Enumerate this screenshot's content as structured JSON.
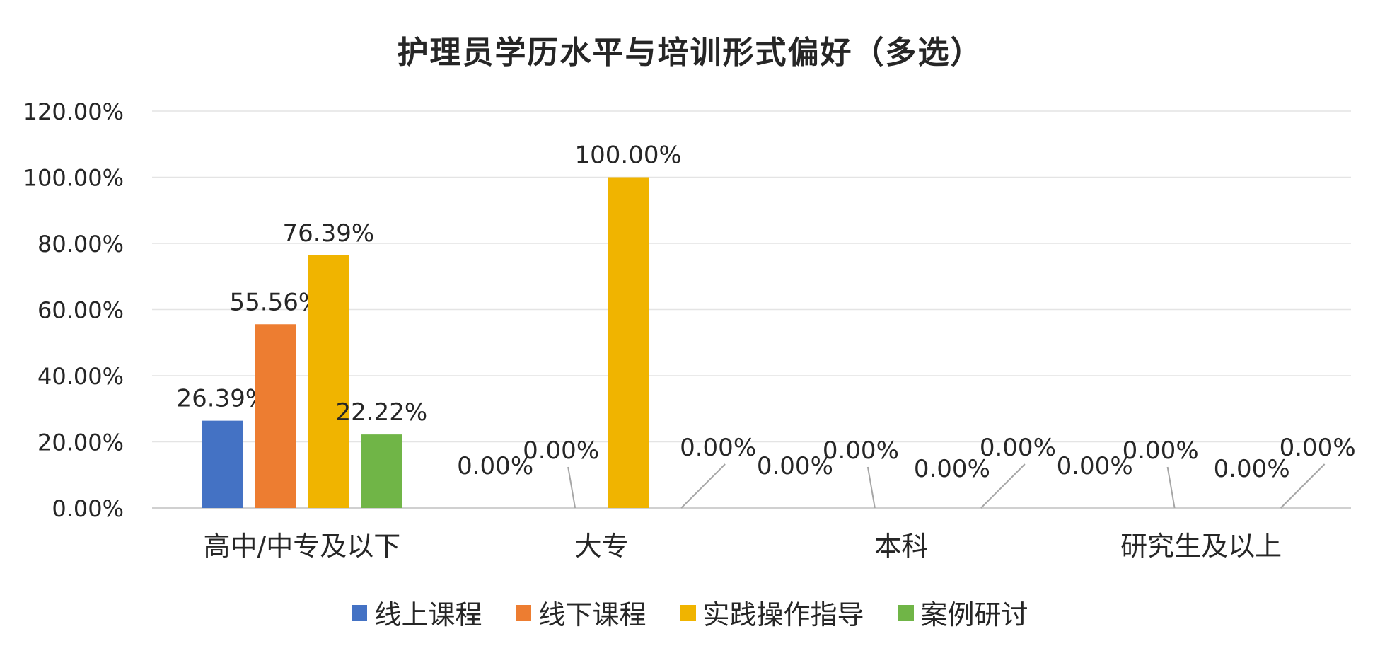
{
  "chart_data": {
    "type": "bar",
    "title": "护理员学历水平与培训形式偏好（多选）",
    "categories": [
      "高中/中专及以下",
      "大专",
      "本科",
      "研究生及以上"
    ],
    "series": [
      {
        "name": "线上课程",
        "color": "#4472C4",
        "values": [
          26.39,
          0,
          0,
          0
        ],
        "labels": [
          "26.39%",
          "0.00%",
          "0.00%",
          "0.00%"
        ]
      },
      {
        "name": "线下课程",
        "color": "#ED7D31",
        "values": [
          55.56,
          0,
          0,
          0
        ],
        "labels": [
          "55.56%",
          "0.00%",
          "0.00%",
          "0.00%"
        ]
      },
      {
        "name": "实践操作指导",
        "color": "#F0B400",
        "values": [
          76.39,
          100,
          0,
          0
        ],
        "labels": [
          "76.39%",
          "100.00%",
          "0.00%",
          "0.00%"
        ]
      },
      {
        "name": "案例研讨",
        "color": "#70B547",
        "values": [
          22.22,
          0,
          0,
          0
        ],
        "labels": [
          "22.22%",
          "0.00%",
          "0.00%",
          "0.00%"
        ]
      }
    ],
    "yticks": [
      "0.00%",
      "20.00%",
      "40.00%",
      "60.00%",
      "80.00%",
      "100.00%",
      "120.00%"
    ],
    "ylim": [
      0,
      120
    ],
    "xlabel": "",
    "ylabel": "",
    "grid": true,
    "legend_position": "bottom"
  }
}
